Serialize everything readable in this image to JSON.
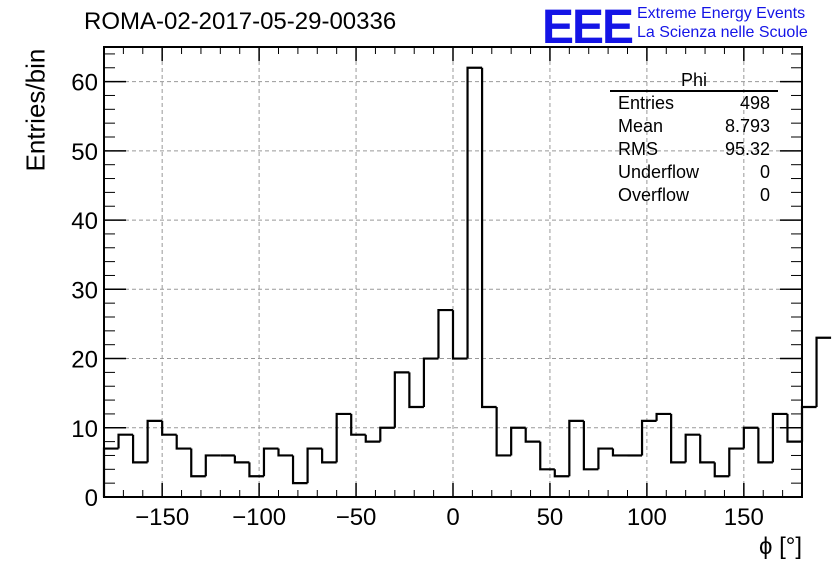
{
  "header": {
    "title": "ROMA-02-2017-05-29-00336",
    "logo": "EEE",
    "logo_line1": "Extreme Energy Events",
    "logo_line2": "La Scienza nelle Scuole"
  },
  "stats": {
    "title": "Phi",
    "rows": [
      {
        "label": "Entries",
        "value": "498"
      },
      {
        "label": "Mean",
        "value": "8.793"
      },
      {
        "label": "RMS",
        "value": "95.32"
      },
      {
        "label": "Underflow",
        "value": "0"
      },
      {
        "label": "Overflow",
        "value": "0"
      }
    ]
  },
  "chart_data": {
    "type": "histogram",
    "title": "ROMA-02-2017-05-29-00336",
    "xlabel": "ϕ [°]",
    "ylabel": "Entries/bin",
    "xlim": [
      -180,
      180
    ],
    "ylim": [
      0,
      65
    ],
    "bin_width": 7.5,
    "x_ticks": [
      -150,
      -100,
      -50,
      0,
      50,
      100,
      150
    ],
    "x_tick_labels": [
      "−150",
      "−100",
      "−50",
      "0",
      "50",
      "100",
      "150"
    ],
    "y_ticks": [
      0,
      10,
      20,
      30,
      40,
      50,
      60
    ],
    "grid": true,
    "values": [
      7,
      9,
      5,
      11,
      9,
      7,
      3,
      6,
      6,
      5,
      3,
      7,
      6,
      2,
      7,
      5,
      12,
      9,
      8,
      10,
      18,
      13,
      20,
      27,
      20,
      62,
      13,
      6,
      10,
      8,
      4,
      3,
      11,
      4,
      7,
      6,
      6,
      11,
      12,
      5,
      9,
      5,
      3,
      7,
      10,
      5,
      12,
      8,
      13,
      23
    ],
    "colors": {
      "line": "#000000",
      "grid": "#999999"
    }
  }
}
